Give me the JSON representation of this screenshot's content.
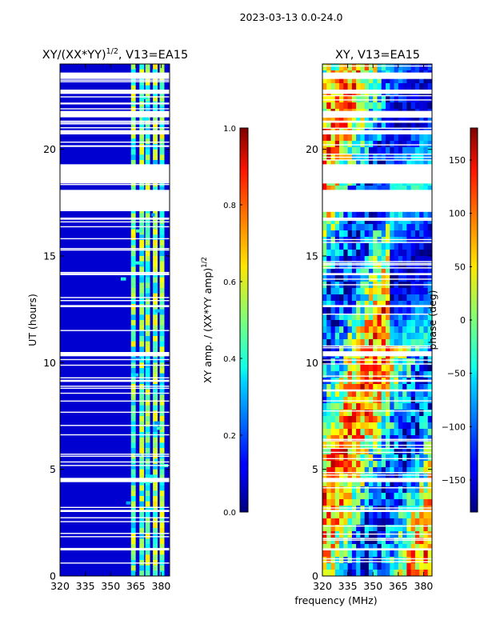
{
  "figure": {
    "suptitle": "2023-03-13 0.0-24.0",
    "xlabel": "frequency (MHz)"
  },
  "chart_data": [
    {
      "type": "heatmap",
      "title_main": "XY/(XX*YY)",
      "title_sup": "1/2",
      "title_rest": ", V13=EA15",
      "xlabel": "",
      "ylabel": "UT (hours)",
      "xlim": [
        320,
        385
      ],
      "ylim": [
        0,
        24
      ],
      "x_ticks": [
        320,
        335,
        350,
        365,
        380
      ],
      "y_ticks": [
        0,
        5,
        10,
        15,
        20
      ],
      "colorbar": {
        "label_main": "XY amp. / (XX*YY amp)",
        "label_sup": "1/2",
        "range": [
          0.0,
          1.0
        ],
        "ticks": [
          "0.0",
          "0.2",
          "0.4",
          "0.6",
          "0.8",
          "1.0"
        ],
        "tick_values": [
          0.0,
          0.2,
          0.4,
          0.6,
          0.8,
          1.0
        ],
        "colormap": "jet"
      },
      "data_gaps_hours": [
        [
          17.1,
          18.1
        ],
        [
          18.4,
          19.3
        ],
        [
          23.3,
          23.6
        ],
        [
          22.6,
          22.8
        ],
        [
          21.5,
          21.8
        ],
        [
          20.7,
          20.9
        ],
        [
          4.4,
          4.6
        ],
        [
          12.6,
          12.7
        ],
        [
          10.3,
          10.5
        ],
        [
          9.1,
          9.2
        ],
        [
          16.7,
          16.8
        ],
        [
          14.1,
          14.2
        ],
        [
          3.0,
          3.1
        ],
        [
          1.2,
          1.3
        ]
      ]
    },
    {
      "type": "heatmap",
      "title": "XY, V13=EA15",
      "xlabel": "",
      "ylabel": "",
      "xlim": [
        320,
        385
      ],
      "ylim": [
        0,
        24
      ],
      "x_ticks": [
        320,
        335,
        350,
        365,
        380
      ],
      "y_ticks": [
        0,
        5,
        10,
        15,
        20
      ],
      "colorbar": {
        "label": "phase (deg)",
        "range": [
          -180,
          180
        ],
        "ticks": [
          "150",
          "100",
          "50",
          "0",
          "−50",
          "−100",
          "−150"
        ],
        "tick_values": [
          150,
          100,
          50,
          0,
          -50,
          -100,
          -150
        ],
        "colormap": "jet"
      },
      "data_gaps_hours": [
        [
          17.1,
          18.1
        ],
        [
          18.4,
          19.3
        ],
        [
          23.3,
          23.6
        ],
        [
          22.6,
          22.8
        ],
        [
          21.5,
          21.8
        ],
        [
          20.7,
          20.9
        ],
        [
          4.4,
          4.6
        ],
        [
          12.6,
          12.7
        ],
        [
          10.3,
          10.5
        ],
        [
          9.1,
          9.2
        ],
        [
          16.7,
          16.8
        ],
        [
          14.1,
          14.2
        ],
        [
          3.0,
          3.1
        ],
        [
          1.2,
          1.3
        ]
      ]
    }
  ]
}
